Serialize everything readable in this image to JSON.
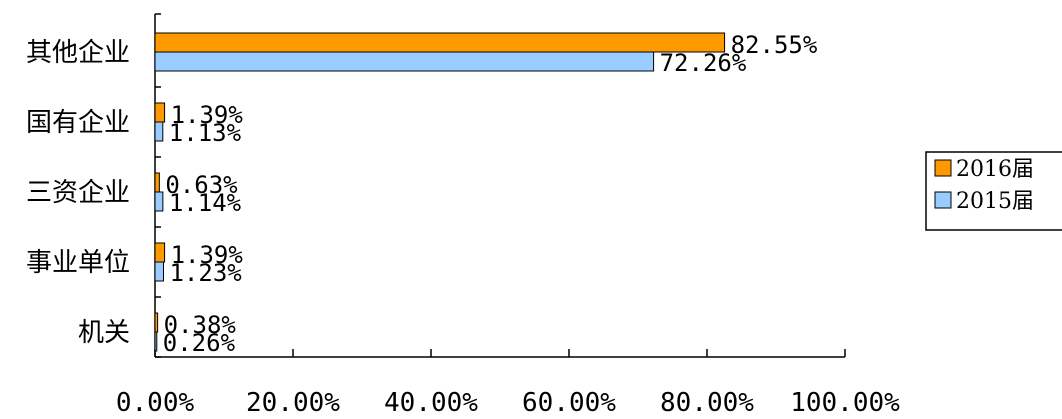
{
  "chart_data": {
    "type": "bar",
    "orientation": "horizontal",
    "categories": [
      "其他企业",
      "国有企业",
      "三资企业",
      "事业单位",
      "机关"
    ],
    "series": [
      {
        "name": "2016届",
        "values": [
          82.55,
          1.39,
          0.63,
          1.39,
          0.38
        ],
        "labels": [
          "82.55%",
          "1.39%",
          "0.63%",
          "1.39%",
          "0.38%"
        ],
        "color": "#FF9900"
      },
      {
        "name": "2015届",
        "values": [
          72.26,
          1.13,
          1.14,
          1.23,
          0.26
        ],
        "labels": [
          "72.26%",
          "1.13%",
          "1.14%",
          "1.23%",
          "0.26%"
        ],
        "color": "#99CCFF"
      }
    ],
    "xlim": [
      0,
      100
    ],
    "xticks": [
      "0.00%",
      "20.00%",
      "40.00%",
      "60.00%",
      "80.00%",
      "100.00%"
    ],
    "grid": false,
    "legend_position": "right"
  }
}
